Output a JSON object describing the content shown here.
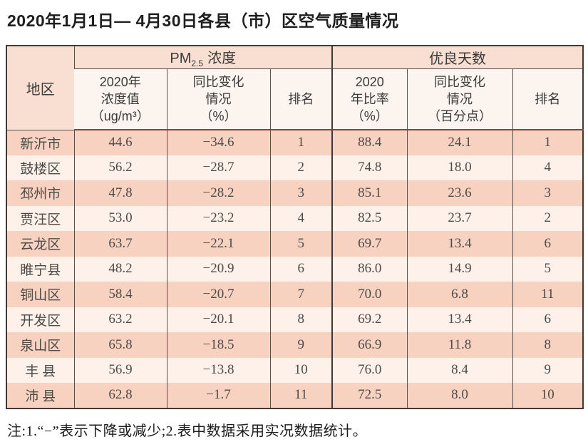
{
  "title": "2020年1月1日— 4月30日各县（市）区空气质量情况",
  "note": "注:1.“−”表示下降或减少;2.表中数据采用实况数据统计。",
  "colors": {
    "row_shade": "#f7d2c0",
    "row_light": "#fdf1ea",
    "header_group_bg": "#f8dfd2",
    "header_sub_bg": "#fcf5ef",
    "region_header_bg": "#f9eae0",
    "outer_border": "#3f3a37",
    "thin_border": "#57504b",
    "header_body_divider": "#80463c"
  },
  "table": {
    "region_header": "地区",
    "groups": {
      "pm": {
        "prefix": "PM",
        "sub": "2.5",
        "suffix": "浓度"
      },
      "good": {
        "label": "优良天数"
      }
    },
    "subheaders": {
      "pm_value": {
        "l1": "2020年",
        "l2": "浓度值",
        "l3": "（ug/m³）"
      },
      "pm_change": {
        "l1": "同比变化",
        "l2": "情况",
        "l3": "（%）"
      },
      "pm_rank": {
        "label": "排名"
      },
      "good_rate": {
        "l1": "2020",
        "l2": "年比率",
        "l3": "（%）"
      },
      "good_change": {
        "l1": "同比变化",
        "l2": "情况",
        "l3": "（百分点）"
      },
      "good_rank": {
        "label": "排名"
      }
    },
    "row_fields": [
      "region",
      "pm_value",
      "pm_change",
      "pm_rank",
      "good_rate",
      "good_change",
      "good_rank"
    ],
    "section_start_field": "good_rate",
    "rows": [
      {
        "region": "新沂市",
        "pm_value": "44.6",
        "pm_change": "−34.6",
        "pm_rank": "1",
        "good_rate": "88.4",
        "good_change": "24.1",
        "good_rank": "1"
      },
      {
        "region": "鼓楼区",
        "pm_value": "56.2",
        "pm_change": "−28.7",
        "pm_rank": "2",
        "good_rate": "74.8",
        "good_change": "18.0",
        "good_rank": "4"
      },
      {
        "region": "邳州市",
        "pm_value": "47.8",
        "pm_change": "−28.2",
        "pm_rank": "3",
        "good_rate": "85.1",
        "good_change": "23.6",
        "good_rank": "3"
      },
      {
        "region": "贾汪区",
        "pm_value": "53.0",
        "pm_change": "−23.2",
        "pm_rank": "4",
        "good_rate": "82.5",
        "good_change": "23.7",
        "good_rank": "2"
      },
      {
        "region": "云龙区",
        "pm_value": "63.7",
        "pm_change": "−22.1",
        "pm_rank": "5",
        "good_rate": "69.7",
        "good_change": "13.4",
        "good_rank": "6"
      },
      {
        "region": "睢宁县",
        "pm_value": "48.2",
        "pm_change": "−20.9",
        "pm_rank": "6",
        "good_rate": "86.0",
        "good_change": "14.9",
        "good_rank": "5"
      },
      {
        "region": "铜山区",
        "pm_value": "58.4",
        "pm_change": "−20.7",
        "pm_rank": "7",
        "good_rate": "70.0",
        "good_change": "6.8",
        "good_rank": "11"
      },
      {
        "region": "开发区",
        "pm_value": "63.2",
        "pm_change": "−20.1",
        "pm_rank": "8",
        "good_rate": "69.2",
        "good_change": "13.4",
        "good_rank": "6"
      },
      {
        "region": "泉山区",
        "pm_value": "65.8",
        "pm_change": "−18.5",
        "pm_rank": "9",
        "good_rate": "66.9",
        "good_change": "11.8",
        "good_rank": "8"
      },
      {
        "region": "丰 县",
        "pm_value": "56.9",
        "pm_change": "−13.8",
        "pm_rank": "10",
        "good_rate": "76.0",
        "good_change": "8.4",
        "good_rank": "9"
      },
      {
        "region": "沛 县",
        "pm_value": "62.8",
        "pm_change": "−1.7",
        "pm_rank": "11",
        "good_rate": "72.5",
        "good_change": "8.0",
        "good_rank": "10"
      }
    ]
  },
  "chart_data": {
    "type": "table",
    "title": "2020年1月1日—4月30日各县（市）区空气质量情况",
    "column_groups": [
      "地区",
      "PM2.5浓度",
      "PM2.5浓度",
      "PM2.5浓度",
      "优良天数",
      "优良天数",
      "优良天数"
    ],
    "columns": [
      "地区",
      "2020年浓度值(ug/m3)",
      "同比变化情况(%)",
      "排名",
      "2020年比率(%)",
      "同比变化情况(百分点)",
      "排名"
    ],
    "rows": [
      [
        "新沂市",
        44.6,
        -34.6,
        1,
        88.4,
        24.1,
        1
      ],
      [
        "鼓楼区",
        56.2,
        -28.7,
        2,
        74.8,
        18.0,
        4
      ],
      [
        "邳州市",
        47.8,
        -28.2,
        3,
        85.1,
        23.6,
        3
      ],
      [
        "贾汪区",
        53.0,
        -23.2,
        4,
        82.5,
        23.7,
        2
      ],
      [
        "云龙区",
        63.7,
        -22.1,
        5,
        69.7,
        13.4,
        6
      ],
      [
        "睢宁县",
        48.2,
        -20.9,
        6,
        86.0,
        14.9,
        5
      ],
      [
        "铜山区",
        58.4,
        -20.7,
        7,
        70.0,
        6.8,
        11
      ],
      [
        "开发区",
        63.2,
        -20.1,
        8,
        69.2,
        13.4,
        6
      ],
      [
        "泉山区",
        65.8,
        -18.5,
        9,
        66.9,
        11.8,
        8
      ],
      [
        "丰县",
        56.9,
        -13.8,
        10,
        76.0,
        8.4,
        9
      ],
      [
        "沛县",
        62.8,
        -1.7,
        11,
        72.5,
        8.0,
        10
      ]
    ],
    "footnote": "注:1.“−”表示下降或减少;2.表中数据采用实况数据统计。"
  }
}
